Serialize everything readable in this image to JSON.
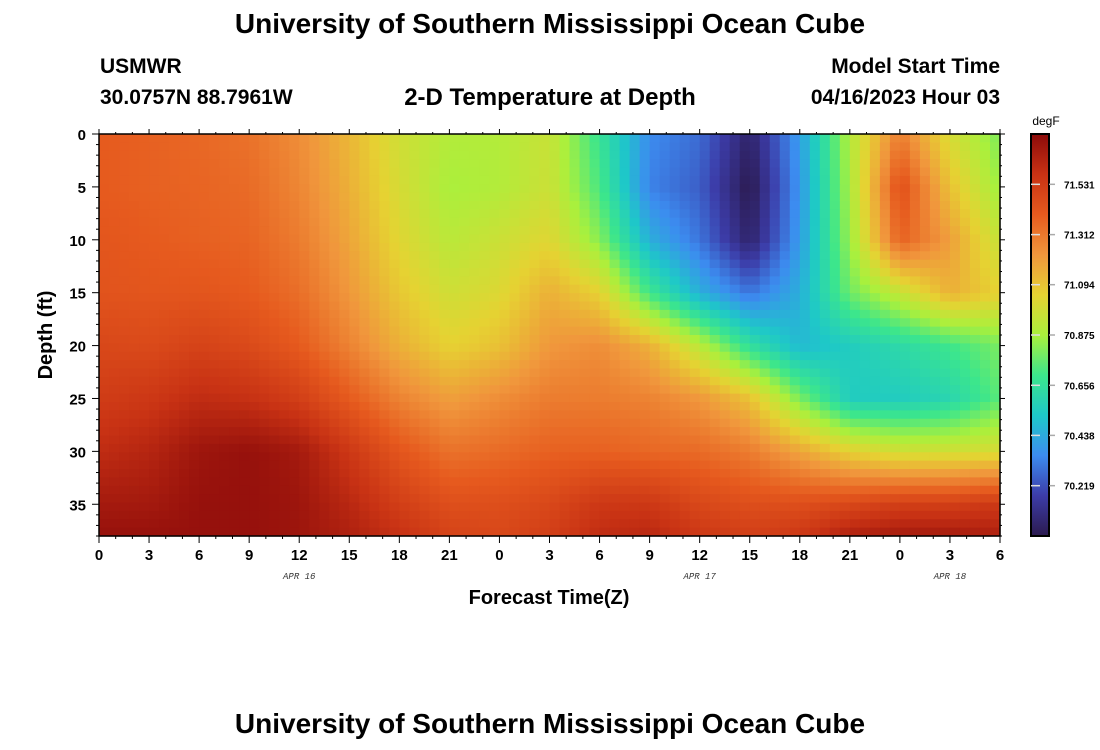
{
  "header": {
    "title": "University of Southern Mississippi Ocean Cube",
    "station_name": "USMWR",
    "station_coords": "30.0757N  88.7961W",
    "chart_title": "2-D Temperature at Depth",
    "start_label": "Model Start Time",
    "start_value": "04/16/2023 Hour 03"
  },
  "footer": {
    "title": "University of Southern Mississippi Ocean Cube"
  },
  "chart_data": {
    "type": "heatmap",
    "title": "2-D Temperature at Depth",
    "xlabel": "Forecast Time(Z)",
    "ylabel": "Depth (ft)",
    "x_ticks": [
      "0",
      "3",
      "6",
      "9",
      "12",
      "15",
      "18",
      "21",
      "0",
      "3",
      "6",
      "9",
      "12",
      "15",
      "18",
      "21",
      "0",
      "3",
      "6"
    ],
    "x_range_hours": [
      0,
      54
    ],
    "date_labels": [
      {
        "label": "APR 16",
        "hour": 12
      },
      {
        "label": "APR 17",
        "hour": 36
      },
      {
        "label": "APR 18",
        "hour": 51
      }
    ],
    "y_ticks": [
      0,
      5,
      10,
      15,
      20,
      25,
      30,
      35
    ],
    "y_range_ft": [
      0,
      38
    ],
    "y_inverted": true,
    "colorbar": {
      "unit": "degF",
      "ticks": [
        "71.531",
        "71.312",
        "71.094",
        "70.875",
        "70.656",
        "70.438",
        "70.219"
      ],
      "tick_values": [
        71.531,
        71.312,
        71.094,
        70.875,
        70.656,
        70.438,
        70.219
      ],
      "range": [
        70.0,
        71.75
      ],
      "colormap": [
        "#2b1a4f",
        "#3c3ca8",
        "#3c8cf0",
        "#1ec8c8",
        "#3ce68c",
        "#aaf03c",
        "#e6d232",
        "#f0963c",
        "#e65a1e",
        "#c83214",
        "#8c0a0a"
      ]
    },
    "depth_ft": [
      0,
      5,
      10,
      15,
      20,
      25,
      30,
      35,
      38
    ],
    "time_hours": [
      0,
      3,
      6,
      9,
      12,
      15,
      18,
      21,
      24,
      27,
      30,
      33,
      36,
      39,
      42,
      45,
      48,
      51,
      54
    ],
    "temperature_degF": [
      [
        71.4,
        71.38,
        71.36,
        71.33,
        71.25,
        71.13,
        70.98,
        70.9,
        70.9,
        70.96,
        70.68,
        70.35,
        70.28,
        70.05,
        70.4,
        70.9,
        71.3,
        71.0,
        70.8
      ],
      [
        71.4,
        71.38,
        71.37,
        71.35,
        71.27,
        71.15,
        71.0,
        70.88,
        70.9,
        70.97,
        70.72,
        70.33,
        70.25,
        70.0,
        70.38,
        70.88,
        71.45,
        71.1,
        70.85
      ],
      [
        71.42,
        71.4,
        71.38,
        71.37,
        71.3,
        71.18,
        71.03,
        70.92,
        70.97,
        71.03,
        70.82,
        70.45,
        70.3,
        70.05,
        70.4,
        70.85,
        71.38,
        71.2,
        70.95
      ],
      [
        71.43,
        71.42,
        71.42,
        71.4,
        71.34,
        71.22,
        71.08,
        70.98,
        71.02,
        71.15,
        71.05,
        70.7,
        70.45,
        70.3,
        70.45,
        70.78,
        70.95,
        71.15,
        71.05
      ],
      [
        71.48,
        71.47,
        71.5,
        71.47,
        71.4,
        71.28,
        71.15,
        71.05,
        71.1,
        71.22,
        71.25,
        71.15,
        70.92,
        70.65,
        70.48,
        70.55,
        70.62,
        70.7,
        70.8
      ],
      [
        71.53,
        71.55,
        71.6,
        71.58,
        71.52,
        71.4,
        71.28,
        71.2,
        71.25,
        71.3,
        71.3,
        71.28,
        71.22,
        71.1,
        70.8,
        70.55,
        70.55,
        70.6,
        70.75
      ],
      [
        71.6,
        71.63,
        71.7,
        71.72,
        71.68,
        71.55,
        71.42,
        71.33,
        71.35,
        71.38,
        71.38,
        71.36,
        71.35,
        71.3,
        71.18,
        71.05,
        70.98,
        70.98,
        71.0
      ],
      [
        71.68,
        71.68,
        71.72,
        71.72,
        71.7,
        71.62,
        71.52,
        71.45,
        71.45,
        71.48,
        71.55,
        71.55,
        71.48,
        71.45,
        71.45,
        71.48,
        71.52,
        71.52,
        71.55
      ],
      [
        71.72,
        71.72,
        71.72,
        71.72,
        71.7,
        71.65,
        71.58,
        71.5,
        71.48,
        71.52,
        71.6,
        71.62,
        71.55,
        71.52,
        71.55,
        71.65,
        71.68,
        71.68,
        71.65
      ]
    ]
  }
}
